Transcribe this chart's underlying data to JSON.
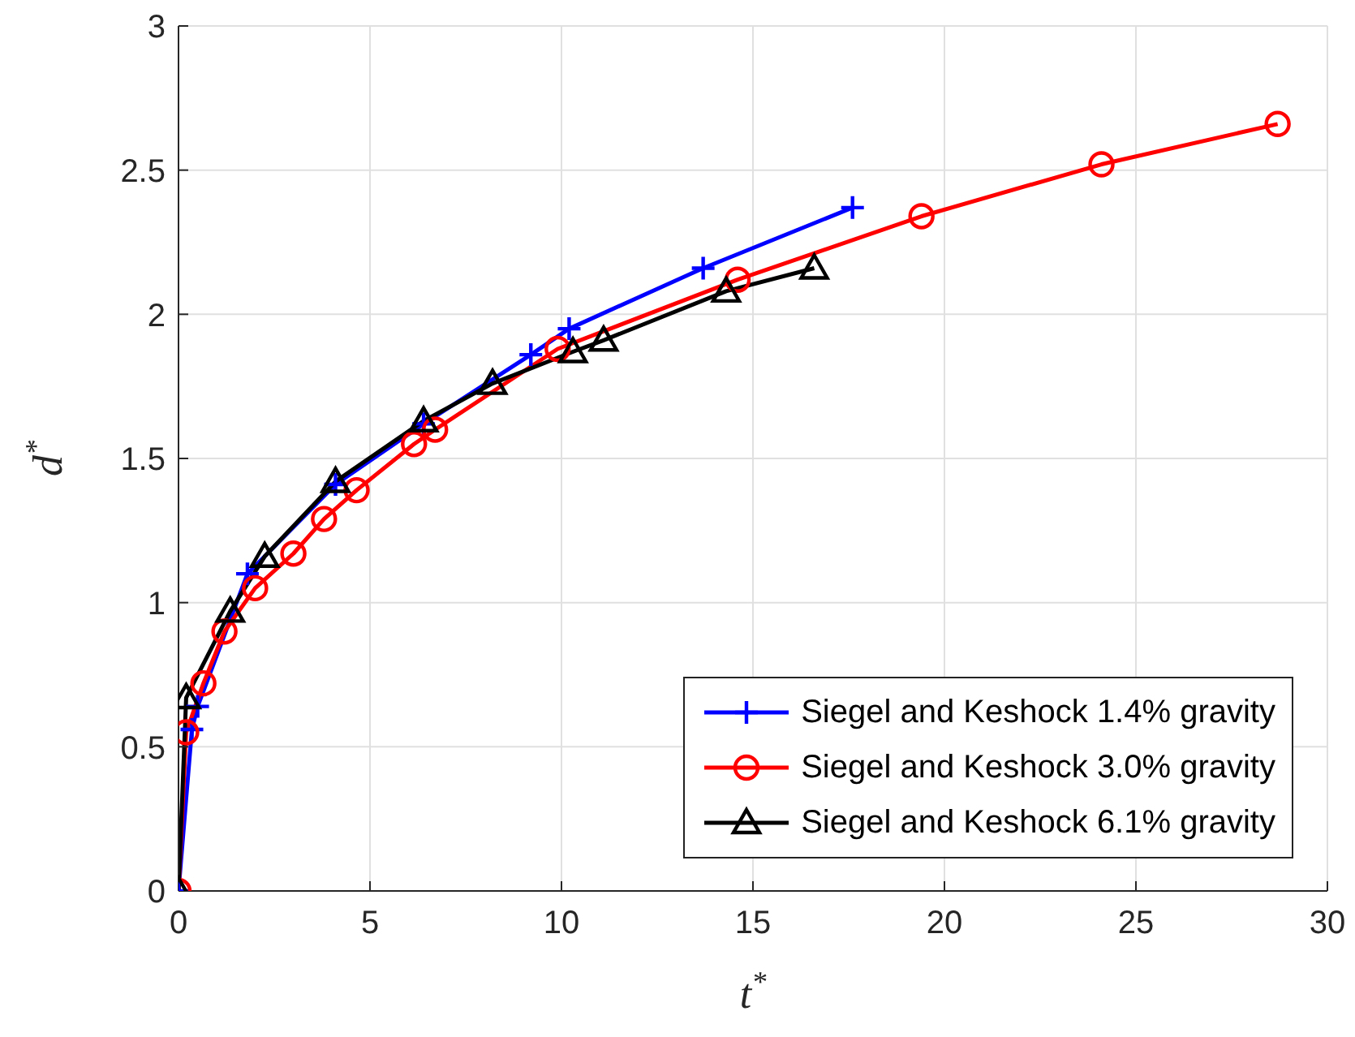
{
  "chart_data": {
    "type": "line",
    "xlabel": "t$^{*}$",
    "ylabel": "d$^{*}$",
    "xlim": [
      0,
      30
    ],
    "xticks": [
      0,
      5,
      10,
      15,
      20,
      25,
      30
    ],
    "ylim": [
      0,
      3
    ],
    "yticks": [
      0,
      0.5,
      1,
      1.5,
      2,
      2.5,
      3
    ],
    "grid": true,
    "legend": "bottom right",
    "series": [
      {
        "name": "Siegel and Keshock 1.4% gravity",
        "color": "#0000ff",
        "marker": "cross",
        "x": [
          0,
          0.35,
          0.5,
          1.8,
          4.1,
          6.4,
          9.2,
          10.2,
          13.7,
          17.6
        ],
        "values": [
          0,
          0.56,
          0.64,
          1.1,
          1.41,
          1.62,
          1.86,
          1.95,
          2.16,
          2.37
        ]
      },
      {
        "name": "Siegel and Keshock 3.0% gravity",
        "color": "#ff0000",
        "marker": "circle",
        "x": [
          0,
          0.2,
          0.65,
          1.2,
          2.0,
          3.0,
          3.8,
          4.65,
          6.15,
          6.7,
          9.9,
          14.6,
          19.4,
          24.1,
          28.7
        ],
        "values": [
          0,
          0.55,
          0.72,
          0.9,
          1.05,
          1.17,
          1.29,
          1.39,
          1.55,
          1.6,
          1.88,
          2.12,
          2.34,
          2.52,
          2.66
        ]
      },
      {
        "name": "Siegel and Keshock 6.1% gravity",
        "color": "#000000",
        "marker": "triangle",
        "x": [
          0,
          0.2,
          1.35,
          2.25,
          4.1,
          6.4,
          8.2,
          10.3,
          11.1,
          14.3,
          16.6
        ],
        "values": [
          0,
          0.67,
          0.97,
          1.16,
          1.42,
          1.63,
          1.76,
          1.87,
          1.91,
          2.08,
          2.16
        ]
      }
    ]
  }
}
